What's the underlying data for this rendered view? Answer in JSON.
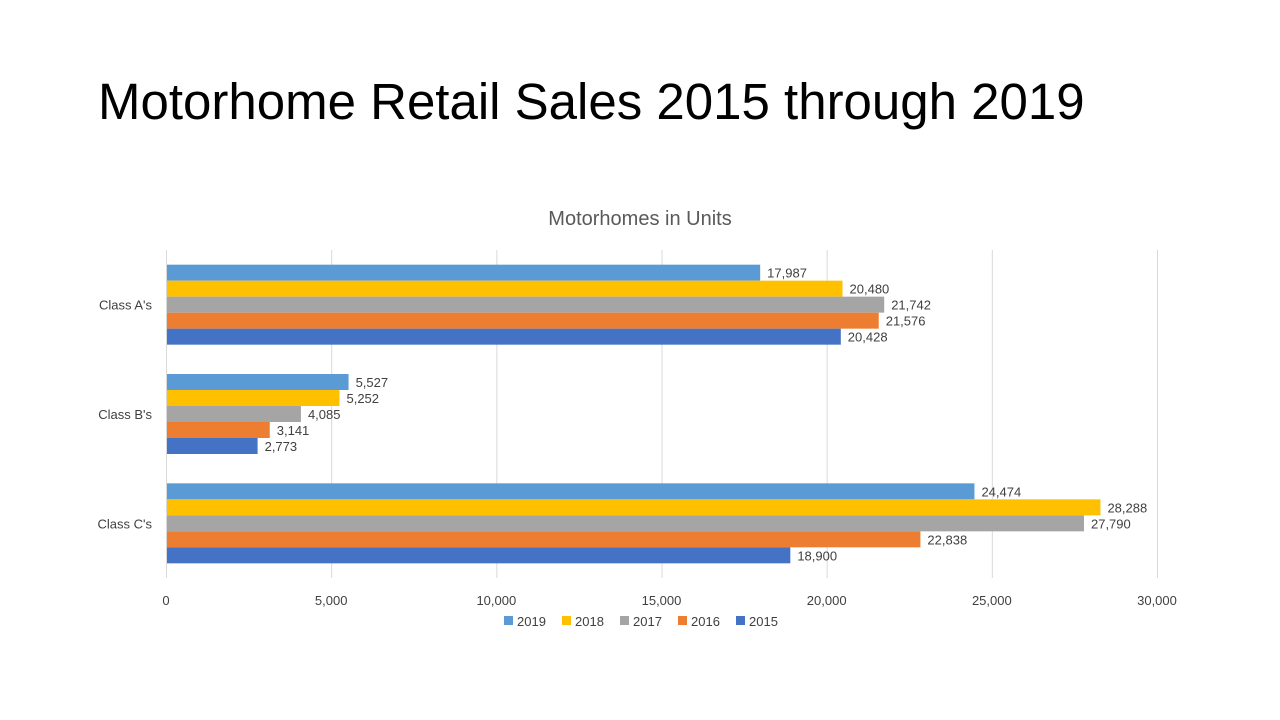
{
  "slide": {
    "title": "Motorhome Retail Sales 2015 through 2019"
  },
  "chart_data": {
    "type": "bar",
    "orientation": "horizontal",
    "title": "Motorhomes in Units",
    "xlabel": "",
    "ylabel": "",
    "categories": [
      "Class A's",
      "Class B's",
      "Class C's"
    ],
    "series": [
      {
        "name": "2019",
        "color": "#5B9BD5",
        "values": [
          17987,
          5527,
          24474
        ],
        "labels": [
          "17,987",
          "5,527",
          "24,474"
        ]
      },
      {
        "name": "2018",
        "color": "#FFC000",
        "values": [
          20480,
          5252,
          28288
        ],
        "labels": [
          "20,480",
          "5,252",
          "28,288"
        ]
      },
      {
        "name": "2017",
        "color": "#A5A5A5",
        "values": [
          21742,
          4085,
          27790
        ],
        "labels": [
          "21,742",
          "4,085",
          "27,790"
        ]
      },
      {
        "name": "2016",
        "color": "#ED7D31",
        "values": [
          21576,
          3141,
          22838
        ],
        "labels": [
          "21,576",
          "3,141",
          "22,838"
        ]
      },
      {
        "name": "2015",
        "color": "#4472C4",
        "values": [
          20428,
          2773,
          18900
        ],
        "labels": [
          "20,428",
          "2,773",
          "18,900"
        ]
      }
    ],
    "xlim": [
      0,
      30000
    ],
    "xticks": [
      0,
      5000,
      10000,
      15000,
      20000,
      25000,
      30000
    ],
    "xtick_labels": [
      "0",
      "5,000",
      "10,000",
      "15,000",
      "20,000",
      "25,000",
      "30,000"
    ],
    "grid": "vertical",
    "legend": "bottom"
  }
}
